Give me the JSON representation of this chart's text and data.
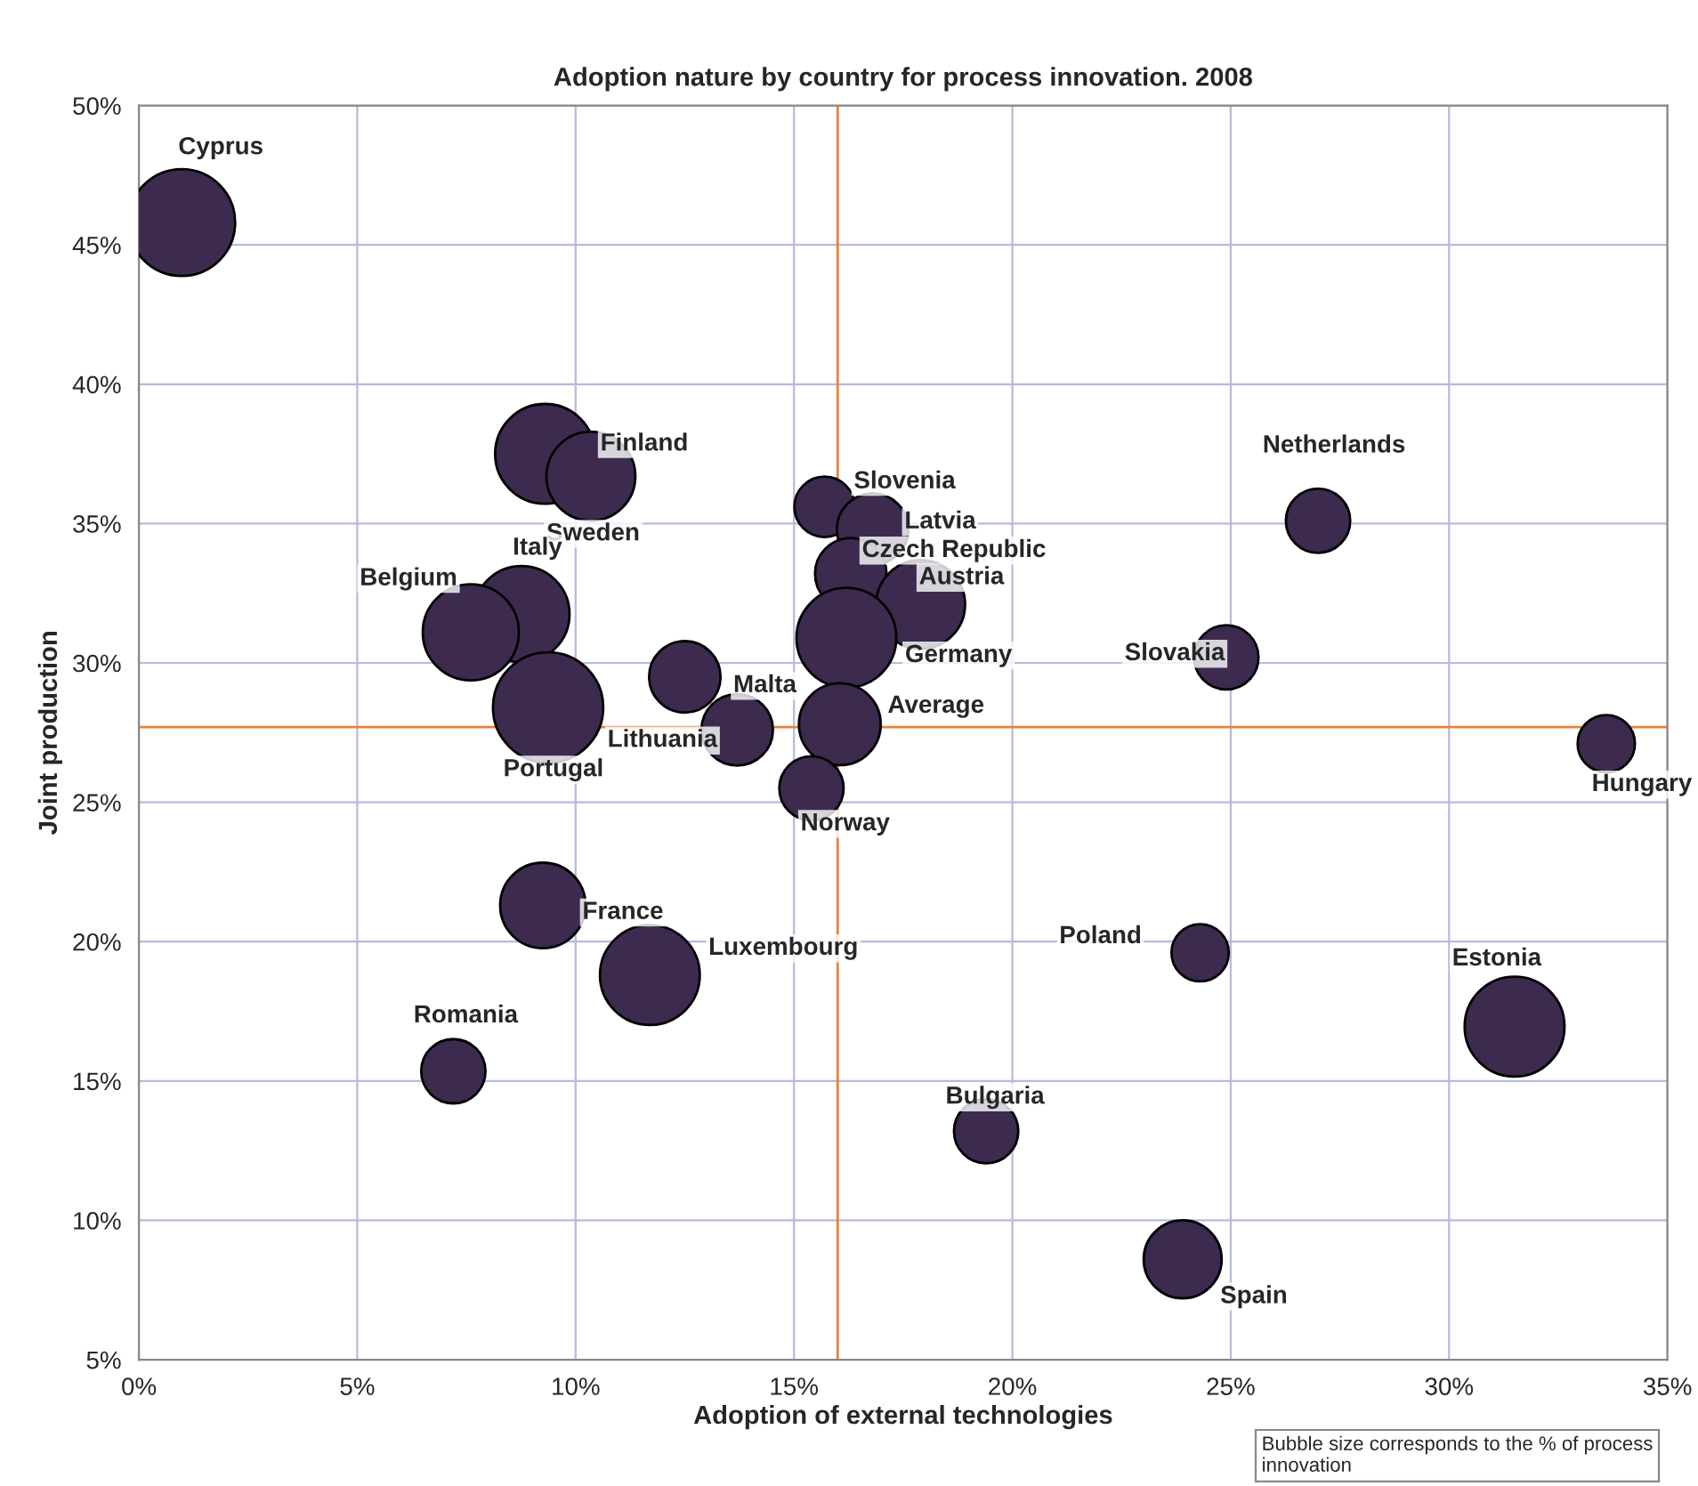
{
  "chart_data": {
    "type": "bubble",
    "title": "Adoption nature by country for process innovation. 2008",
    "xlabel": "Adoption of external technologies",
    "ylabel": "Joint production",
    "x": [
      0.98,
      9.3,
      10.35,
      8.76,
      7.6,
      9.37,
      12.5,
      13.7,
      15.7,
      16.8,
      16.3,
      17.9,
      16.2,
      16.05,
      15.4,
      27.0,
      24.9,
      33.6,
      9.25,
      11.7,
      24.3,
      31.5,
      7.2,
      19.4,
      23.9
    ],
    "values": [
      45.8,
      37.5,
      36.7,
      31.75,
      31.1,
      28.4,
      29.5,
      27.6,
      35.6,
      34.8,
      33.2,
      32.1,
      30.9,
      27.8,
      25.5,
      35.1,
      30.2,
      27.1,
      21.3,
      18.8,
      19.6,
      16.95,
      15.35,
      13.2,
      8.6
    ],
    "sizes": [
      0.94,
      0.82,
      0.65,
      0.76,
      0.76,
      1.0,
      0.42,
      0.42,
      0.3,
      0.42,
      0.42,
      0.65,
      0.82,
      0.55,
      0.34,
      0.34,
      0.34,
      0.27,
      0.6,
      0.82,
      0.27,
      0.82,
      0.34,
      0.34,
      0.5
    ],
    "color": "#3d2b4f",
    "xlim": [
      0,
      35
    ],
    "ylim": [
      5,
      50
    ],
    "xticks": [
      {
        "value": 0,
        "label": "0%"
      },
      {
        "value": 5,
        "label": "5%"
      },
      {
        "value": 10,
        "label": "10%"
      },
      {
        "value": 15,
        "label": "15%"
      },
      {
        "value": 20,
        "label": "20%"
      },
      {
        "value": 25,
        "label": "25%"
      },
      {
        "value": 30,
        "label": "30%"
      },
      {
        "value": 35,
        "label": "35%"
      }
    ],
    "yticks": [
      {
        "value": 5,
        "label": "5%"
      },
      {
        "value": 10,
        "label": "10%"
      },
      {
        "value": 15,
        "label": "15%"
      },
      {
        "value": 20,
        "label": "20%"
      },
      {
        "value": 25,
        "label": "25%"
      },
      {
        "value": 30,
        "label": "30%"
      },
      {
        "value": 35,
        "label": "35%"
      },
      {
        "value": 40,
        "label": "40%"
      },
      {
        "value": 45,
        "label": "45%"
      },
      {
        "value": 50,
        "label": "50%"
      }
    ],
    "ref_lines": [
      {
        "axis": "x",
        "value": 16,
        "color": "#e8823a"
      },
      {
        "axis": "y",
        "value": 27.7,
        "color": "#e8823a"
      }
    ],
    "grid": true,
    "legend": false,
    "annotations": [
      {
        "text": "Cyprus",
        "x": 0.98,
        "y": 45.8
      },
      {
        "text": "Sweden",
        "x": 9.3,
        "y": 37.5
      },
      {
        "text": "Finland",
        "x": 10.35,
        "y": 36.7
      },
      {
        "text": "Italy",
        "x": 8.76,
        "y": 31.75
      },
      {
        "text": "Belgium",
        "x": 7.6,
        "y": 31.1
      },
      {
        "text": "Portugal",
        "x": 9.37,
        "y": 28.4
      },
      {
        "text": "Malta",
        "x": 12.5,
        "y": 29.5
      },
      {
        "text": "Lithuania",
        "x": 13.7,
        "y": 27.6
      },
      {
        "text": "Slovenia",
        "x": 15.7,
        "y": 35.6
      },
      {
        "text": "Latvia",
        "x": 16.8,
        "y": 34.8
      },
      {
        "text": "Czech Republic",
        "x": 16.3,
        "y": 33.2
      },
      {
        "text": "Austria",
        "x": 17.9,
        "y": 32.1
      },
      {
        "text": "Germany",
        "x": 16.2,
        "y": 30.9
      },
      {
        "text": "Average",
        "x": 16.05,
        "y": 27.8
      },
      {
        "text": "Norway",
        "x": 15.4,
        "y": 25.5
      },
      {
        "text": "Netherlands",
        "x": 27.0,
        "y": 35.1
      },
      {
        "text": "Slovakia",
        "x": 24.9,
        "y": 30.2
      },
      {
        "text": "Hungary",
        "x": 33.6,
        "y": 27.1
      },
      {
        "text": "France",
        "x": 9.25,
        "y": 21.3
      },
      {
        "text": "Luxembourg",
        "x": 11.7,
        "y": 18.8
      },
      {
        "text": "Poland",
        "x": 24.3,
        "y": 19.6
      },
      {
        "text": "Estonia",
        "x": 31.5,
        "y": 16.95
      },
      {
        "text": "Romania",
        "x": 7.2,
        "y": 15.35
      },
      {
        "text": "Bulgaria",
        "x": 19.4,
        "y": 13.2
      },
      {
        "text": "Spain",
        "x": 23.9,
        "y": 8.6
      },
      "Bubble size corresponds to the % of process innovation"
    ]
  }
}
